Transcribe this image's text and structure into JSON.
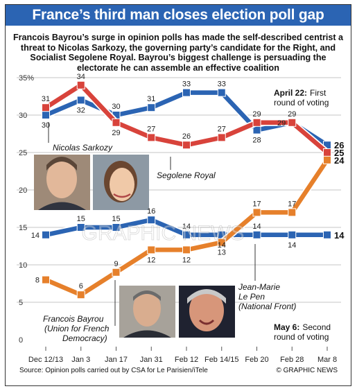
{
  "header": {
    "title": "France’s third man closes election poll gap",
    "subtitle": "Francois Bayrou’s surge in opinion polls has made the self-described centrist a threat to Nicolas Sarkozy, the governing party’s candidate for the Right, and Socialist Segolene Royal. Bayrou’s biggest challenge is persuading the electorate he can assemble an effective coalition"
  },
  "chart_data": {
    "type": "line",
    "categories": [
      "Dec 12/13",
      "Jan 3",
      "Jan 17",
      "Jan 31",
      "Feb 12",
      "Feb 14/15",
      "Feb 20",
      "Feb 28",
      "Mar 8"
    ],
    "y_ticks": [
      0,
      5,
      10,
      15,
      20,
      25,
      30,
      35
    ],
    "y_top_label": "35%",
    "ylim": [
      0,
      36
    ],
    "series": [
      {
        "name": "Nicolas Sarkozy",
        "color": "#2b64b3",
        "values": [
          30,
          32,
          30,
          31,
          33,
          33,
          28,
          29,
          26
        ],
        "end_label": "26"
      },
      {
        "name": "Segolene Royal",
        "color": "#d8433b",
        "values": [
          31,
          34,
          29,
          27,
          26,
          27,
          29,
          29,
          25
        ],
        "end_label": "25"
      },
      {
        "name": "Jean-Marie Le Pen",
        "color": "#2b64b3",
        "values": [
          14,
          15,
          15,
          16,
          14,
          14,
          14,
          14,
          14
        ],
        "end_label": "14"
      },
      {
        "name": "Francois Bayrou",
        "color": "#e6802b",
        "values": [
          8,
          6,
          9,
          12,
          12,
          13,
          17,
          17,
          24
        ],
        "end_label": "24"
      }
    ],
    "annotations": {
      "first_round_bold": "April 22:",
      "first_round_rest": "First",
      "first_round_line2": "round of voting",
      "second_round_bold": "May 6:",
      "second_round_rest": "Second",
      "second_round_line2": "round of voting"
    },
    "candidate_labels": {
      "sarkozy": "Nicolas Sarkozy",
      "royal": "Segolene Royal",
      "lepen_1": "Jean-Marie",
      "lepen_2": "Le Pen",
      "lepen_3": "(National Front)",
      "bayrou_1": "Francois Bayrou",
      "bayrou_2": "(Union for French",
      "bayrou_3": "Democracy)"
    }
  },
  "footer": {
    "source": "Source: Opinion polls carried out by CSA for Le Parisien/iTele",
    "credit": "© GRAPHIC NEWS",
    "watermark": "GRAPHIC NEWS"
  }
}
